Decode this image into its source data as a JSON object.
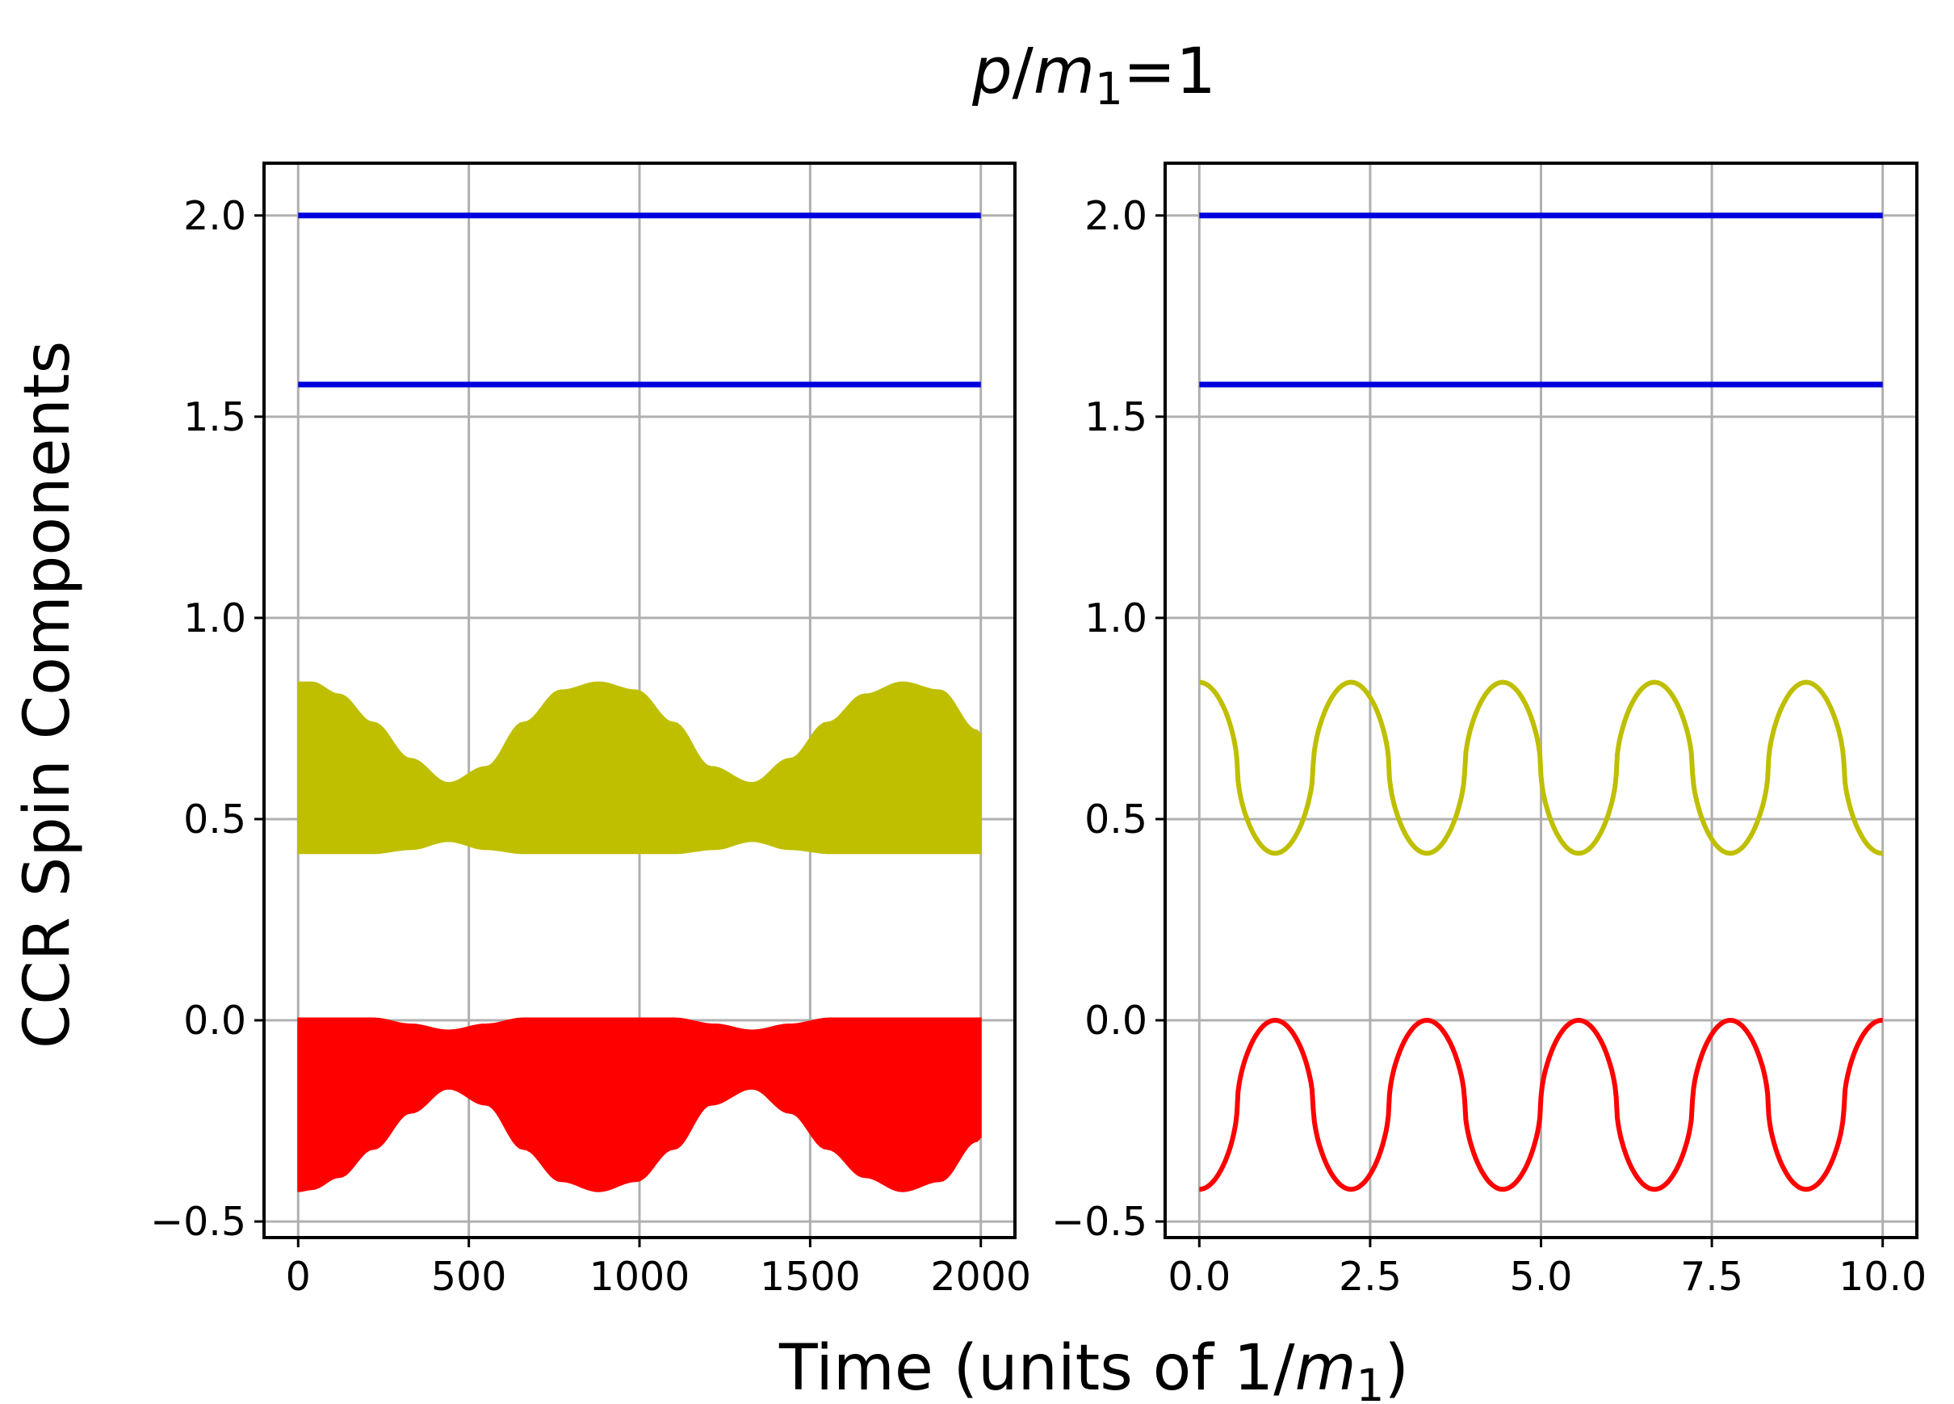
{
  "figure": {
    "suptitle_parts": [
      {
        "text": "p",
        "italic": true,
        "sub": false
      },
      {
        "text": "/",
        "italic": false,
        "sub": false
      },
      {
        "text": "m",
        "italic": true,
        "sub": false
      },
      {
        "text": "1",
        "italic": false,
        "sub": true
      },
      {
        "text": "=1",
        "italic": false,
        "sub": false
      }
    ],
    "xlabel_parts": [
      {
        "text": "Time (units of 1/",
        "italic": false,
        "sub": false
      },
      {
        "text": "m",
        "italic": true,
        "sub": false
      },
      {
        "text": "1",
        "italic": false,
        "sub": true
      },
      {
        "text": ")",
        "italic": false,
        "sub": false
      }
    ],
    "ylabel": "CCR Spin Components"
  },
  "colors": {
    "blue": "#0000dd",
    "olive": "#bfbf00",
    "red": "#ff0000",
    "grid": "#b0b0b0"
  },
  "chart_data": [
    {
      "type": "line",
      "panel": "left",
      "title": "",
      "xlim": [
        -100,
        2100
      ],
      "ylim": [
        -0.54,
        2.13
      ],
      "xticks": [
        0,
        500,
        1000,
        1500,
        2000
      ],
      "xtick_labels": [
        "0",
        "500",
        "1000",
        "1500",
        "2000"
      ],
      "yticks": [
        -0.5,
        0.0,
        0.5,
        1.0,
        1.5,
        2.0
      ],
      "ytick_labels": [
        "−0.5",
        "0.0",
        "0.5",
        "1.0",
        "1.5",
        "2.0"
      ],
      "grid": true,
      "series": [
        {
          "name": "blue-upper",
          "color": "blue",
          "kind": "constant",
          "x_range": [
            0,
            2000
          ],
          "value": 2.0
        },
        {
          "name": "blue-lower",
          "color": "blue",
          "kind": "constant",
          "x_range": [
            0,
            2000
          ],
          "value": 1.58
        },
        {
          "name": "olive-band",
          "color": "olive",
          "kind": "band",
          "upper": {
            "x": [
              0,
              40,
              120,
              220,
              330,
              440,
              550,
              660,
              770,
              880,
              990,
              1100,
              1210,
              1330,
              1440,
              1550,
              1660,
              1770,
              1880,
              1990,
              2000
            ],
            "y": [
              0.84,
              0.84,
              0.81,
              0.74,
              0.65,
              0.59,
              0.63,
              0.74,
              0.82,
              0.84,
              0.82,
              0.74,
              0.63,
              0.59,
              0.65,
              0.74,
              0.81,
              0.84,
              0.82,
              0.72,
              0.71
            ]
          },
          "lower": {
            "x": [
              0,
              220,
              330,
              440,
              550,
              660,
              880,
              1100,
              1220,
              1330,
              1440,
              1560,
              1770,
              2000
            ],
            "y": [
              0.415,
              0.415,
              0.425,
              0.445,
              0.425,
              0.415,
              0.415,
              0.415,
              0.425,
              0.445,
              0.425,
              0.415,
              0.415,
              0.415
            ]
          }
        },
        {
          "name": "red-band",
          "color": "red",
          "kind": "band",
          "upper": {
            "x": [
              0,
              220,
              330,
              440,
              550,
              660,
              880,
              1100,
              1220,
              1330,
              1440,
              1560,
              1770,
              2000
            ],
            "y": [
              0.005,
              0.005,
              -0.01,
              -0.025,
              -0.01,
              0.005,
              0.005,
              0.005,
              -0.01,
              -0.025,
              -0.01,
              0.005,
              0.005,
              0.005
            ]
          },
          "lower": {
            "x": [
              0,
              40,
              120,
              220,
              330,
              440,
              550,
              660,
              770,
              880,
              990,
              1100,
              1210,
              1330,
              1440,
              1550,
              1660,
              1770,
              1880,
              1990,
              2000
            ],
            "y": [
              -0.425,
              -0.42,
              -0.39,
              -0.32,
              -0.23,
              -0.17,
              -0.21,
              -0.32,
              -0.4,
              -0.425,
              -0.4,
              -0.32,
              -0.21,
              -0.17,
              -0.23,
              -0.32,
              -0.39,
              -0.425,
              -0.4,
              -0.3,
              -0.29
            ]
          }
        }
      ]
    },
    {
      "type": "line",
      "panel": "right",
      "title": "",
      "xlim": [
        -0.5,
        10.5
      ],
      "ylim": [
        -0.54,
        2.13
      ],
      "xticks": [
        0.0,
        2.5,
        5.0,
        7.5,
        10.0
      ],
      "xtick_labels": [
        "0.0",
        "2.5",
        "5.0",
        "7.5",
        "10.0"
      ],
      "yticks": [
        -0.5,
        0.0,
        0.5,
        1.0,
        1.5,
        2.0
      ],
      "ytick_labels": [
        "−0.5",
        "0.0",
        "0.5",
        "1.0",
        "1.5",
        "2.0"
      ],
      "grid": true,
      "series": [
        {
          "name": "blue-upper",
          "color": "blue",
          "kind": "constant",
          "x_range": [
            0,
            10
          ],
          "value": 2.0
        },
        {
          "name": "blue-lower",
          "color": "blue",
          "kind": "constant",
          "x_range": [
            0,
            10
          ],
          "value": 1.58
        },
        {
          "name": "olive-oscillation",
          "color": "olive",
          "kind": "oscillation",
          "x_range": [
            0,
            10
          ],
          "max": 0.84,
          "min": 0.415,
          "period": 2.22,
          "phase": "max-at-start"
        },
        {
          "name": "red-oscillation",
          "color": "red",
          "kind": "oscillation",
          "x_range": [
            0,
            10
          ],
          "max": 0.0,
          "min": -0.42,
          "period": 2.22,
          "phase": "min-at-start"
        }
      ]
    }
  ]
}
